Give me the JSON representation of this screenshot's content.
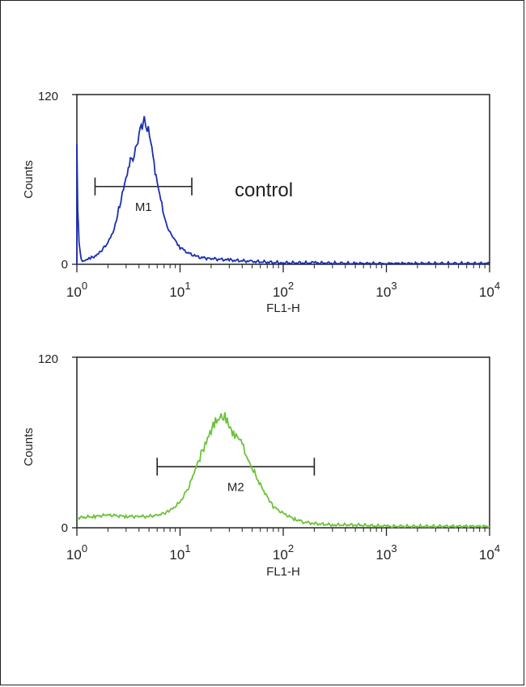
{
  "chart_data": [
    {
      "type": "line",
      "xlabel": "FL1-H",
      "ylabel": "Counts",
      "xscale": "log",
      "xlim": [
        1,
        10000
      ],
      "ylim": [
        0,
        120
      ],
      "x_tick_labels": [
        {
          "base": "10",
          "exp": "0"
        },
        {
          "base": "10",
          "exp": "1"
        },
        {
          "base": "10",
          "exp": "2"
        },
        {
          "base": "10",
          "exp": "3"
        },
        {
          "base": "10",
          "exp": "4"
        }
      ],
      "y_tick_labels": [
        "0",
        "120"
      ],
      "annotation": "control",
      "marker": {
        "label": "M1",
        "x_range": [
          1.5,
          13
        ],
        "y": 55
      },
      "color": "#1a2fb0",
      "series": [
        {
          "x": [
            1.0,
            1.02,
            1.05,
            1.1,
            1.2,
            1.35,
            1.5,
            1.7,
            2.0,
            2.3,
            2.6,
            3.0,
            3.3,
            3.6,
            3.9,
            4.2,
            4.5,
            4.8,
            5.2,
            5.6,
            6.0,
            6.5,
            7.0,
            7.5,
            8.0,
            9.0,
            10,
            12,
            15,
            20,
            30,
            50,
            100,
            200,
            500,
            1000,
            10000
          ],
          "y": [
            85,
            40,
            15,
            3,
            3,
            4,
            6,
            9,
            15,
            25,
            42,
            60,
            72,
            80,
            88,
            94,
            104,
            97,
            86,
            72,
            58,
            45,
            35,
            27,
            22,
            17,
            12,
            8,
            5,
            4,
            3,
            2,
            1,
            1,
            0.5,
            0.5,
            0.5
          ]
        }
      ]
    },
    {
      "type": "line",
      "xlabel": "FL1-H",
      "ylabel": "Counts",
      "xscale": "log",
      "xlim": [
        1,
        10000
      ],
      "ylim": [
        0,
        120
      ],
      "x_tick_labels": [
        {
          "base": "10",
          "exp": "0"
        },
        {
          "base": "10",
          "exp": "1"
        },
        {
          "base": "10",
          "exp": "2"
        },
        {
          "base": "10",
          "exp": "3"
        },
        {
          "base": "10",
          "exp": "4"
        }
      ],
      "y_tick_labels": [
        "0",
        "120"
      ],
      "marker": {
        "label": "M2",
        "x_range": [
          6,
          200
        ],
        "y": 43
      },
      "color": "#6cc23a",
      "series": [
        {
          "x": [
            1.0,
            1.5,
            2,
            3,
            4,
            5,
            6,
            7,
            8,
            10,
            12,
            14,
            16,
            18,
            20,
            22,
            25,
            28,
            30,
            33,
            36,
            40,
            45,
            50,
            60,
            70,
            80,
            100,
            130,
            160,
            200,
            300,
            500,
            1000,
            10000
          ],
          "y": [
            7,
            8,
            9,
            8,
            8,
            8,
            9,
            10,
            12,
            18,
            28,
            40,
            52,
            62,
            68,
            74,
            80,
            76,
            70,
            68,
            64,
            58,
            50,
            42,
            30,
            22,
            15,
            10,
            6,
            4,
            3,
            2,
            2,
            1,
            1
          ]
        }
      ]
    }
  ]
}
